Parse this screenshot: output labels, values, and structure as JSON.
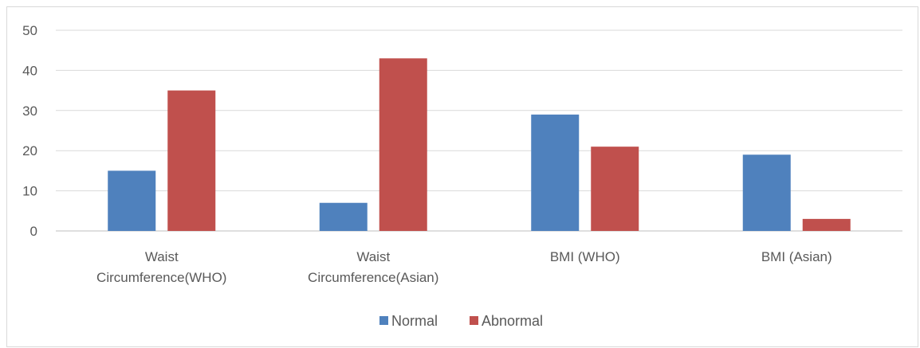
{
  "chart_data": {
    "type": "bar",
    "categories": [
      [
        "Waist",
        "Circumference(WHO)"
      ],
      [
        "Waist",
        "Circumference(Asian)"
      ],
      [
        "BMI (WHO)"
      ],
      [
        "BMI (Asian)"
      ]
    ],
    "series": [
      {
        "name": "Normal",
        "color": "#4f81bd",
        "values": [
          15,
          7,
          29,
          19
        ]
      },
      {
        "name": "Abnormal",
        "color": "#c0504d",
        "values": [
          35,
          43,
          21,
          3
        ]
      }
    ],
    "ylim": [
      0,
      50
    ],
    "yticks": [
      "0",
      "10",
      "20",
      "30",
      "40",
      "50"
    ],
    "grid": true,
    "legend_position": "bottom"
  }
}
